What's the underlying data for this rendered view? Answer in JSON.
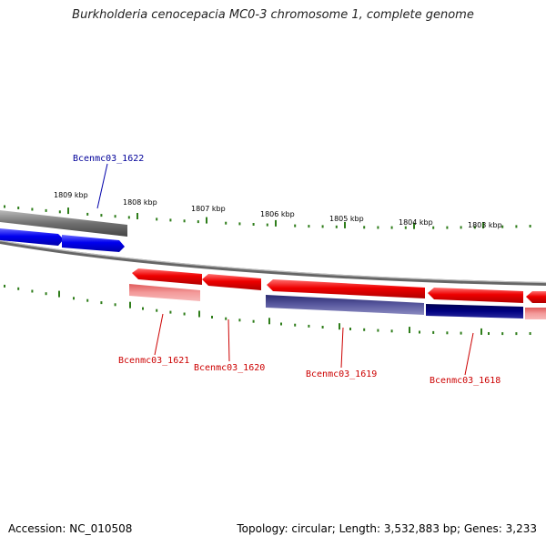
{
  "title": "Burkholderia cenocepacia MC0-3 chromosome 1, complete genome",
  "footer": {
    "accession": "Accession: NC_010508",
    "topology": "Topology: circular; Length: 3,532,883 bp; Genes: 3,233"
  },
  "colors": {
    "forward_gene": "#0000ee",
    "reverse_gene": "#ee0000",
    "forward_label": "#000099",
    "reverse_label": "#cc0000",
    "tick": "#2e7d1a",
    "backbone": "#777777"
  },
  "ticks": {
    "upper": [
      "1809 kbp",
      "1808 kbp",
      "1807 kbp",
      "1806 kbp",
      "1805 kbp",
      "1804 kbp",
      "1803 kbp"
    ]
  },
  "genes": [
    {
      "name": "Bcenmc03_1622",
      "strand": "forward"
    },
    {
      "name": "Bcenmc03_1621",
      "strand": "reverse"
    },
    {
      "name": "Bcenmc03_1620",
      "strand": "reverse"
    },
    {
      "name": "Bcenmc03_1619",
      "strand": "reverse"
    },
    {
      "name": "Bcenmc03_1618",
      "strand": "reverse"
    }
  ]
}
